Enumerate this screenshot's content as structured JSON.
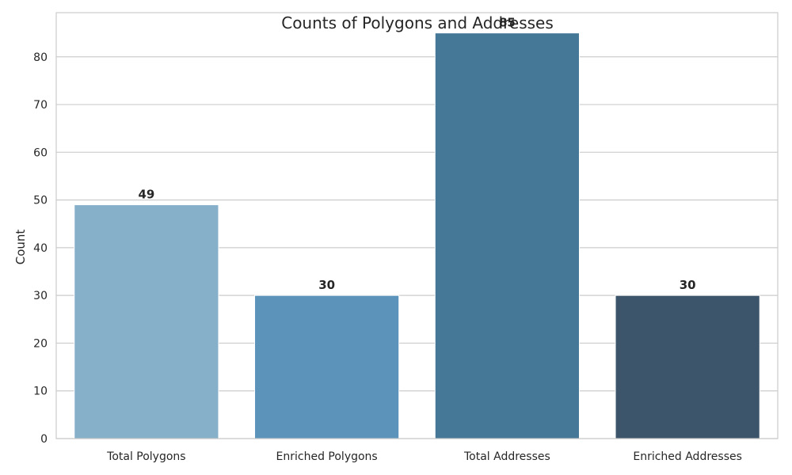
{
  "chart_data": {
    "type": "bar",
    "title": "Counts of Polygons and Addresses",
    "xlabel": "",
    "ylabel": "Count",
    "categories": [
      "Total Polygons",
      "Enriched Polygons",
      "Total Addresses",
      "Enriched Addresses"
    ],
    "values": [
      49,
      30,
      85,
      30
    ],
    "data_labels": [
      "49",
      "30",
      "85",
      "30"
    ],
    "colors": [
      "#86afca",
      "#5b93bb",
      "#457796",
      "#3d556b"
    ],
    "ylim": [
      0,
      89.25
    ],
    "yticks": [
      0,
      10,
      20,
      30,
      40,
      50,
      60,
      70,
      80
    ],
    "grid": true,
    "legend": "none"
  }
}
